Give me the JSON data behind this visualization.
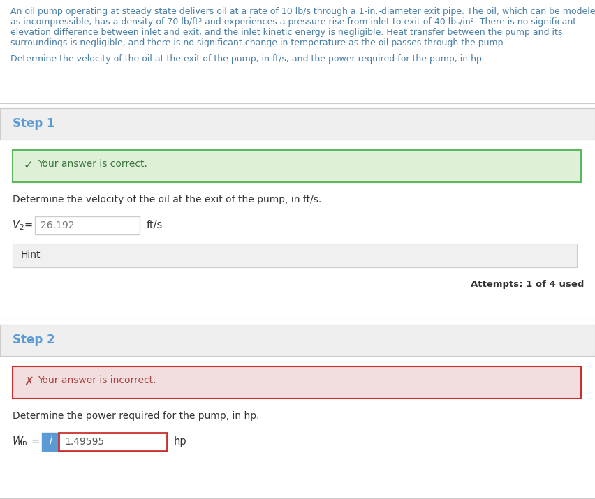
{
  "bg_color": "#ffffff",
  "section_bg": "#efefef",
  "problem_text_lines": [
    "An oil pump operating at steady state delivers oil at a rate of 10 lb/s through a 1-in.-diameter exit pipe. The oil, which can be modeled",
    "as incompressible, has a density of 70 lb/ft³ and experiences a pressure rise from inlet to exit of 40 lbₙ/in². There is no significant",
    "elevation difference between inlet and exit, and the inlet kinetic energy is negligible. Heat transfer between the pump and its",
    "surroundings is negligible, and there is no significant change in temperature as the oil passes through the pump."
  ],
  "problem_question": "Determine the velocity of the oil at the exit of the pump, in ft/s, and the power required for the pump, in hp.",
  "step1_label": "Step 1",
  "step1_correct_text": "  Your answer is correct.",
  "step1_question": "Determine the velocity of the oil at the exit of the pump, in ft/s.",
  "step1_value": "26.192",
  "step1_unit": "ft/s",
  "step1_hint": "Hint",
  "step1_attempts": "Attempts: 1 of 4 used",
  "step2_label": "Step 2",
  "step2_incorrect_text": "  Your answer is incorrect.",
  "step2_question": "Determine the power required for the pump, in hp.",
  "step2_value": "1.49595",
  "step2_unit": "hp",
  "text_color": "#333333",
  "link_color": "#4a7fa5",
  "step_header_color": "#5b9bd5",
  "correct_bg": "#dff0d8",
  "correct_border": "#5cb85c",
  "correct_text_color": "#3c763d",
  "incorrect_bg": "#f2dede",
  "incorrect_border": "#c9302c",
  "incorrect_text_color": "#a94442",
  "input_border": "#cccccc",
  "hint_bg": "#f0f0f0",
  "hint_border": "#cccccc",
  "info_blue_bg": "#5b9bd5",
  "divider_color": "#cccccc",
  "attempts_color": "#333333"
}
